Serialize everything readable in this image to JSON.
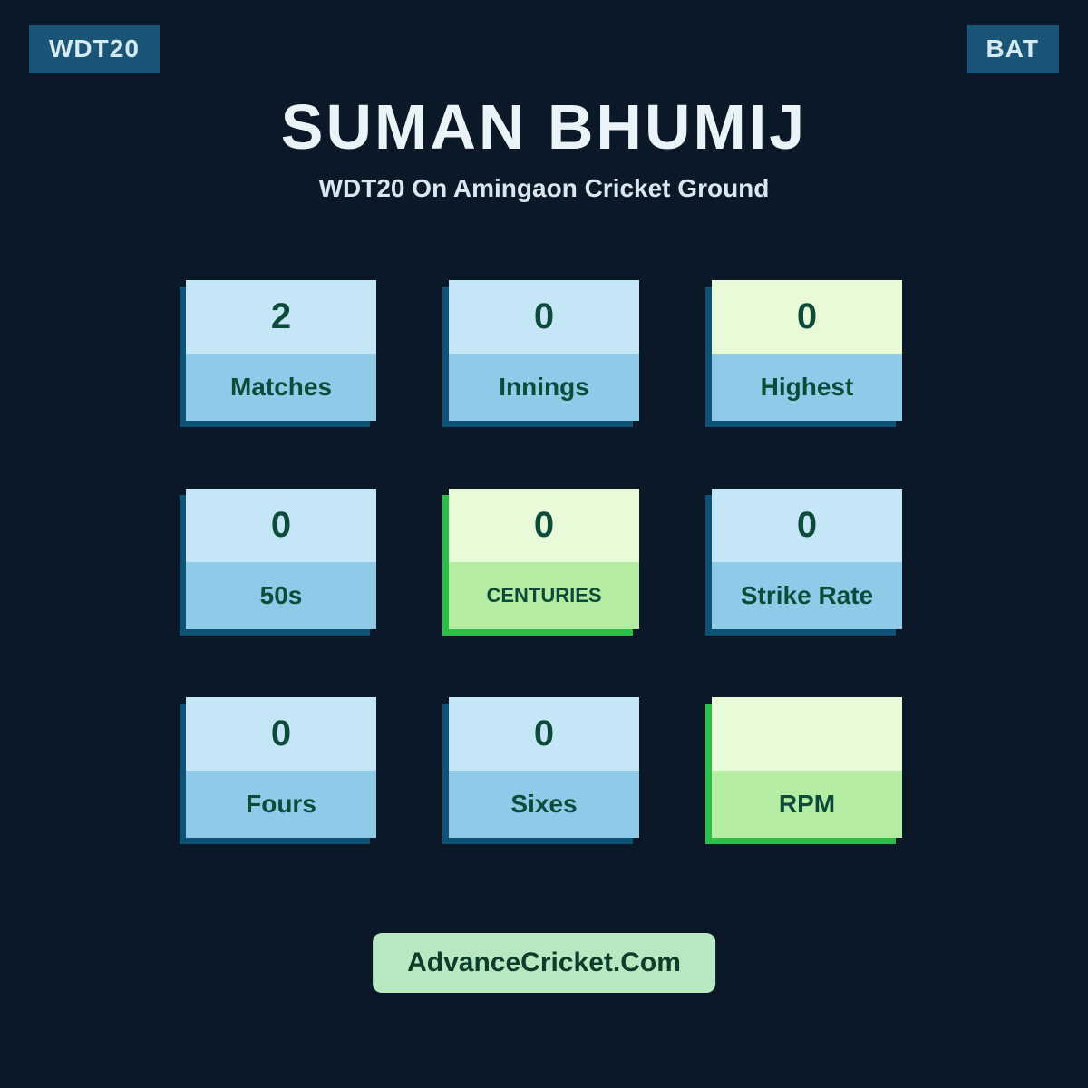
{
  "badges": {
    "left": "WDT20",
    "right": "BAT"
  },
  "header": {
    "player_name": "SUMAN BHUMIJ",
    "subtitle": "WDT20 On Amingaon Cricket Ground"
  },
  "colors": {
    "background": "#0a1828",
    "badge_bg": "#1a5578",
    "badge_text": "#d4eaf5",
    "title_text": "#eaf4f8",
    "subtitle_text": "#d8e8ee",
    "blue_light": "#c5e6f7",
    "blue_mid": "#8fcbe8",
    "blue_shadow": "#0f5275",
    "green_light": "#e8fad8",
    "green_mid": "#b4eca4",
    "green_shadow": "#2bbf47",
    "stat_text": "#0c4a3a",
    "footer_bg": "#b8e8c2",
    "footer_text": "#0b3d2a"
  },
  "stats": [
    {
      "value": "2",
      "label": "Matches",
      "variant": "blue",
      "label_font_family": ""
    },
    {
      "value": "0",
      "label": "Innings",
      "variant": "blue",
      "label_font_family": ""
    },
    {
      "value": "0",
      "label": "Highest",
      "variant": "green_value_blue_label",
      "label_font_family": ""
    },
    {
      "value": "0",
      "label": "50s",
      "variant": "blue",
      "label_font_family": ""
    },
    {
      "value": "0",
      "label": "CENTURIES",
      "variant": "green",
      "label_font_family": "Arial Black, Arial, sans-serif",
      "label_font_size": "22px"
    },
    {
      "value": "0",
      "label": "Strike Rate",
      "variant": "blue",
      "label_font_family": ""
    },
    {
      "value": "0",
      "label": "Fours",
      "variant": "blue",
      "label_font_family": ""
    },
    {
      "value": "0",
      "label": "Sixes",
      "variant": "blue",
      "label_font_family": ""
    },
    {
      "value": "",
      "label": "RPM",
      "variant": "green",
      "label_font_family": "Arial Black, Arial, sans-serif"
    }
  ],
  "footer": {
    "text": "AdvanceCricket.Com"
  }
}
